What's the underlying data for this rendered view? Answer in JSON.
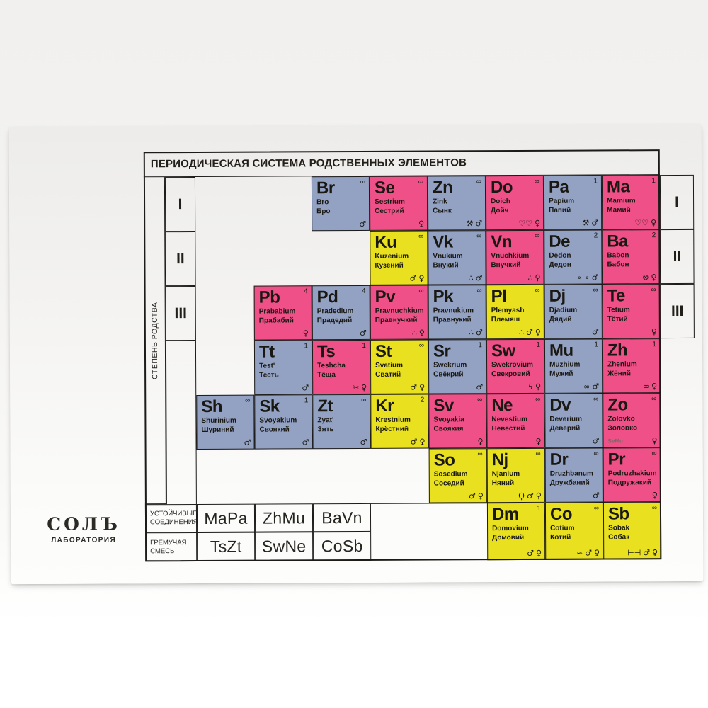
{
  "table": {
    "title": "ПЕРИОДИЧЕСКАЯ СИСТЕМА РОДСТВЕННЫХ ЭЛЕМЕНТОВ",
    "axis_label": "СТЕПЕНЬ РОДСТВА",
    "degrees": [
      "I",
      "II",
      "III"
    ],
    "colors": {
      "male_cell": "#93a1c2",
      "female_cell": "#ef5087",
      "mixed_cell": "#e9e11f",
      "grid_line": "#1c1b19"
    },
    "cells": [
      {
        "symbol": "Br",
        "latin": "Bro",
        "cyrillic": "Бро",
        "degree": "∞",
        "kind": "male",
        "col": 3,
        "row": 1,
        "icons": [
          {
            "name": "male-icon",
            "glyph": "♂"
          }
        ]
      },
      {
        "symbol": "Se",
        "latin": "Sestrium",
        "cyrillic": "Сестрий",
        "degree": "∞",
        "kind": "female",
        "col": 4,
        "row": 1,
        "icons": [
          {
            "name": "female-icon",
            "glyph": "♀"
          }
        ]
      },
      {
        "symbol": "Zn",
        "latin": "Zink",
        "cyrillic": "Сынк",
        "degree": "∞",
        "kind": "male",
        "col": 5,
        "row": 1,
        "icons": [
          {
            "name": "tools-icon",
            "glyph": "⚒"
          },
          {
            "name": "male-icon",
            "glyph": "♂"
          }
        ]
      },
      {
        "symbol": "Do",
        "latin": "Doich",
        "cyrillic": "Дойч",
        "degree": "∞",
        "kind": "female",
        "col": 6,
        "row": 1,
        "icons": [
          {
            "name": "hearts-icon",
            "glyph": "♡♡"
          },
          {
            "name": "female-icon",
            "glyph": "♀"
          }
        ]
      },
      {
        "symbol": "Pa",
        "latin": "Papium",
        "cyrillic": "Папий",
        "degree": "1",
        "kind": "male",
        "col": 7,
        "row": 1,
        "icons": [
          {
            "name": "tools-icon",
            "glyph": "⚒"
          },
          {
            "name": "male-icon",
            "glyph": "♂"
          }
        ]
      },
      {
        "symbol": "Ma",
        "latin": "Mamium",
        "cyrillic": "Мамий",
        "degree": "1",
        "kind": "female",
        "col": 8,
        "row": 1,
        "icons": [
          {
            "name": "hearts-icon",
            "glyph": "♡♡"
          },
          {
            "name": "female-icon",
            "glyph": "♀"
          }
        ]
      },
      {
        "symbol": "Ku",
        "latin": "Kuzenium",
        "cyrillic": "Кузений",
        "degree": "∞",
        "kind": "mixed",
        "col": 4,
        "row": 2,
        "icons": [
          {
            "name": "male-icon",
            "glyph": "♂"
          },
          {
            "name": "female-icon",
            "glyph": "♀"
          }
        ]
      },
      {
        "symbol": "Vk",
        "latin": "Vnukium",
        "cyrillic": "Внукий",
        "degree": "∞",
        "kind": "male",
        "col": 5,
        "row": 2,
        "icons": [
          {
            "name": "balloons-icon",
            "glyph": "∴"
          },
          {
            "name": "male-icon",
            "glyph": "♂"
          }
        ]
      },
      {
        "symbol": "Vn",
        "latin": "Vnuchkium",
        "cyrillic": "Внучкий",
        "degree": "∞",
        "kind": "female",
        "col": 6,
        "row": 2,
        "icons": [
          {
            "name": "balloons-icon",
            "glyph": "∴"
          },
          {
            "name": "female-icon",
            "glyph": "♀"
          }
        ]
      },
      {
        "symbol": "De",
        "latin": "Dedon",
        "cyrillic": "Дедон",
        "degree": "2",
        "kind": "male",
        "col": 7,
        "row": 2,
        "icons": [
          {
            "name": "glasses-icon",
            "glyph": "∘-∘"
          },
          {
            "name": "male-icon",
            "glyph": "♂"
          }
        ]
      },
      {
        "symbol": "Ba",
        "latin": "Babon",
        "cyrillic": "Бабон",
        "degree": "2",
        "kind": "female",
        "col": 8,
        "row": 2,
        "icons": [
          {
            "name": "yarn-icon",
            "glyph": "⊗"
          },
          {
            "name": "female-icon",
            "glyph": "♀"
          }
        ]
      },
      {
        "symbol": "Pb",
        "latin": "Prababium",
        "cyrillic": "Прабабий",
        "degree": "4",
        "kind": "female",
        "col": 2,
        "row": 3,
        "icons": [
          {
            "name": "female-icon",
            "glyph": "♀"
          }
        ]
      },
      {
        "symbol": "Pd",
        "latin": "Pradedium",
        "cyrillic": "Прадедий",
        "degree": "4",
        "kind": "male",
        "col": 3,
        "row": 3,
        "icons": [
          {
            "name": "male-icon",
            "glyph": "♂"
          }
        ]
      },
      {
        "symbol": "Pv",
        "latin": "Pravnuchkium",
        "cyrillic": "Правнучкий",
        "degree": "∞",
        "kind": "female",
        "col": 4,
        "row": 3,
        "icons": [
          {
            "name": "balloons-icon",
            "glyph": "∴"
          },
          {
            "name": "female-icon",
            "glyph": "♀"
          }
        ]
      },
      {
        "symbol": "Pk",
        "latin": "Pravnukium",
        "cyrillic": "Правнукий",
        "degree": "∞",
        "kind": "male",
        "col": 5,
        "row": 3,
        "icons": [
          {
            "name": "balloons-icon",
            "glyph": "∴"
          },
          {
            "name": "male-icon",
            "glyph": "♂"
          }
        ]
      },
      {
        "symbol": "Pl",
        "latin": "Plemyash",
        "cyrillic": "Племяш",
        "degree": "∞",
        "kind": "mixed",
        "col": 6,
        "row": 3,
        "icons": [
          {
            "name": "balloons-icon",
            "glyph": "∴"
          },
          {
            "name": "male-icon",
            "glyph": "♂"
          },
          {
            "name": "female-icon",
            "glyph": "♀"
          }
        ]
      },
      {
        "symbol": "Dj",
        "latin": "Djadium",
        "cyrillic": "Дядий",
        "degree": "∞",
        "kind": "male",
        "col": 7,
        "row": 3,
        "icons": [
          {
            "name": "male-icon",
            "glyph": "♂"
          }
        ]
      },
      {
        "symbol": "Te",
        "latin": "Tetium",
        "cyrillic": "Тётий",
        "degree": "∞",
        "kind": "female",
        "col": 8,
        "row": 3,
        "icons": [
          {
            "name": "female-icon",
            "glyph": "♀"
          }
        ]
      },
      {
        "symbol": "Tt",
        "latin": "Test'",
        "cyrillic": "Тесть",
        "degree": "1",
        "kind": "male",
        "col": 2,
        "row": 4,
        "icons": [
          {
            "name": "male-icon",
            "glyph": "♂"
          }
        ]
      },
      {
        "symbol": "Ts",
        "latin": "Teshcha",
        "cyrillic": "Тёща",
        "degree": "1",
        "kind": "female",
        "col": 3,
        "row": 4,
        "icons": [
          {
            "name": "scissors-icon",
            "glyph": "✂"
          },
          {
            "name": "female-icon",
            "glyph": "♀"
          }
        ]
      },
      {
        "symbol": "St",
        "latin": "Svatium",
        "cyrillic": "Сватий",
        "degree": "∞",
        "kind": "mixed",
        "col": 4,
        "row": 4,
        "icons": [
          {
            "name": "male-icon",
            "glyph": "♂"
          },
          {
            "name": "female-icon",
            "glyph": "♀"
          }
        ]
      },
      {
        "symbol": "Sr",
        "latin": "Swekrium",
        "cyrillic": "Свёкрий",
        "degree": "1",
        "kind": "male",
        "col": 5,
        "row": 4,
        "icons": [
          {
            "name": "male-icon",
            "glyph": "♂"
          }
        ]
      },
      {
        "symbol": "Sw",
        "latin": "Swekrovium",
        "cyrillic": "Свекровий",
        "degree": "1",
        "kind": "female",
        "col": 6,
        "row": 4,
        "icons": [
          {
            "name": "lightning-icon",
            "glyph": "ϟ"
          },
          {
            "name": "female-icon",
            "glyph": "♀"
          }
        ]
      },
      {
        "symbol": "Mu",
        "latin": "Muzhium",
        "cyrillic": "Мужий",
        "degree": "1",
        "kind": "male",
        "col": 7,
        "row": 4,
        "icons": [
          {
            "name": "rings-icon",
            "glyph": "∞"
          },
          {
            "name": "male-icon",
            "glyph": "♂"
          }
        ]
      },
      {
        "symbol": "Zh",
        "latin": "Zhenium",
        "cyrillic": "Жёний",
        "degree": "1",
        "kind": "female",
        "col": 8,
        "row": 4,
        "icons": [
          {
            "name": "rings-icon",
            "glyph": "∞"
          },
          {
            "name": "female-icon",
            "glyph": "♀"
          }
        ]
      },
      {
        "symbol": "Sh",
        "latin": "Shurinium",
        "cyrillic": "Шуриний",
        "degree": "∞",
        "kind": "male",
        "col": 1,
        "row": 5,
        "icons": [
          {
            "name": "male-icon",
            "glyph": "♂"
          }
        ]
      },
      {
        "symbol": "Sk",
        "latin": "Svoyakium",
        "cyrillic": "Своякий",
        "degree": "1",
        "kind": "male",
        "col": 2,
        "row": 5,
        "icons": [
          {
            "name": "male-icon",
            "glyph": "♂"
          }
        ]
      },
      {
        "symbol": "Zt",
        "latin": "Zyat'",
        "cyrillic": "Зять",
        "degree": "∞",
        "kind": "male",
        "col": 3,
        "row": 5,
        "icons": [
          {
            "name": "male-icon",
            "glyph": "♂"
          }
        ]
      },
      {
        "symbol": "Kr",
        "latin": "Krestnium",
        "cyrillic": "Крёстний",
        "degree": "2",
        "kind": "mixed",
        "col": 4,
        "row": 5,
        "icons": [
          {
            "name": "male-icon",
            "glyph": "♂"
          },
          {
            "name": "female-icon",
            "glyph": "♀"
          }
        ]
      },
      {
        "symbol": "Sv",
        "latin": "Svoyakia",
        "cyrillic": "Своякия",
        "degree": "∞",
        "kind": "female",
        "col": 5,
        "row": 5,
        "icons": [
          {
            "name": "female-icon",
            "glyph": "♀"
          }
        ]
      },
      {
        "symbol": "Ne",
        "latin": "Nevestium",
        "cyrillic": "Невестий",
        "degree": "∞",
        "kind": "female",
        "col": 6,
        "row": 5,
        "icons": [
          {
            "name": "female-icon",
            "glyph": "♀"
          }
        ]
      },
      {
        "symbol": "Dv",
        "latin": "Deverium",
        "cyrillic": "Деверий",
        "degree": "∞",
        "kind": "male",
        "col": 7,
        "row": 5,
        "icons": [
          {
            "name": "male-icon",
            "glyph": "♂"
          }
        ]
      },
      {
        "symbol": "Zo",
        "latin": "Zolovko",
        "cyrillic": "Золовко",
        "degree": "∞",
        "kind": "female",
        "col": 8,
        "row": 5,
        "note": "SeMu",
        "icons": [
          {
            "name": "female-icon",
            "glyph": "♀"
          }
        ]
      },
      {
        "symbol": "So",
        "latin": "Sosedium",
        "cyrillic": "Соседий",
        "degree": "∞",
        "kind": "mixed",
        "col": 5,
        "row": 6,
        "icons": [
          {
            "name": "male-icon",
            "glyph": "♂"
          },
          {
            "name": "female-icon",
            "glyph": "♀"
          }
        ]
      },
      {
        "symbol": "Nj",
        "latin": "Njanium",
        "cyrillic": "Няний",
        "degree": "∞",
        "kind": "mixed",
        "col": 6,
        "row": 6,
        "icons": [
          {
            "name": "pacifier-icon",
            "glyph": "Ϙ"
          },
          {
            "name": "male-icon",
            "glyph": "♂"
          },
          {
            "name": "female-icon",
            "glyph": "♀"
          }
        ]
      },
      {
        "symbol": "Dr",
        "latin": "Druzhbanum",
        "cyrillic": "Дружбаний",
        "degree": "∞",
        "kind": "male",
        "col": 7,
        "row": 6,
        "icons": [
          {
            "name": "male-icon",
            "glyph": "♂"
          }
        ]
      },
      {
        "symbol": "Pr",
        "latin": "Podruzhakium",
        "cyrillic": "Подружакий",
        "degree": "∞",
        "kind": "female",
        "col": 8,
        "row": 6,
        "icons": [
          {
            "name": "female-icon",
            "glyph": "♀"
          }
        ]
      },
      {
        "symbol": "Dm",
        "latin": "Domovium",
        "cyrillic": "Домовий",
        "degree": "1",
        "kind": "mixed",
        "col": 6,
        "row": 7,
        "icons": [
          {
            "name": "male-icon",
            "glyph": "♂"
          },
          {
            "name": "female-icon",
            "glyph": "♀"
          }
        ]
      },
      {
        "symbol": "Co",
        "latin": "Cotium",
        "cyrillic": "Котий",
        "degree": "∞",
        "kind": "mixed",
        "col": 7,
        "row": 7,
        "icons": [
          {
            "name": "cat-icon",
            "glyph": "∽"
          },
          {
            "name": "male-icon",
            "glyph": "♂"
          },
          {
            "name": "female-icon",
            "glyph": "♀"
          }
        ]
      },
      {
        "symbol": "Sb",
        "latin": "Sobak",
        "cyrillic": "Собак",
        "degree": "∞",
        "kind": "mixed",
        "col": 8,
        "row": 7,
        "icons": [
          {
            "name": "bone-icon",
            "glyph": "⊢⊣"
          },
          {
            "name": "male-icon",
            "glyph": "♂"
          },
          {
            "name": "female-icon",
            "glyph": "♀"
          }
        ]
      }
    ],
    "compounds": {
      "stable": {
        "label_line1": "УСТОЙЧИВЫЕ",
        "label_line2": "СОЕДИНЕНИЯ",
        "values": [
          "MaPa",
          "ZhMu",
          "BaVn"
        ]
      },
      "explosive": {
        "label_line1": "ГРЕМУЧАЯ",
        "label_line2": "СМЕСЬ",
        "values": [
          "TsZt",
          "SwNe",
          "CoSb"
        ]
      }
    }
  },
  "logo": {
    "name": "СОЛЪ",
    "subtitle": "ЛАБОРАТОРИЯ"
  }
}
